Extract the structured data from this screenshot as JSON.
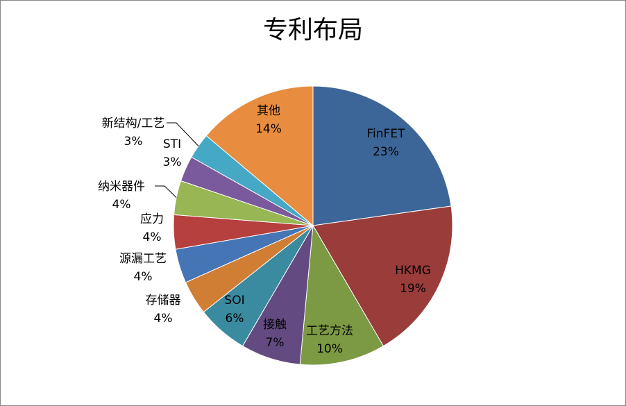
{
  "chart_data": {
    "type": "pie",
    "title": "专利布局",
    "start_angle_deg": 0,
    "direction": "clockwise",
    "slices": [
      {
        "name": "FinFET",
        "percent_label": "23%",
        "value": 23,
        "color": "#3D6698"
      },
      {
        "name": "HKMG",
        "percent_label": "19%",
        "value": 19,
        "color": "#993C3A"
      },
      {
        "name": "工艺方法",
        "percent_label": "10%",
        "value": 10,
        "color": "#7C9A43"
      },
      {
        "name": "接触",
        "percent_label": "7%",
        "value": 7,
        "color": "#634B81"
      },
      {
        "name": "SOI",
        "percent_label": "6%",
        "value": 6,
        "color": "#3A8AA0"
      },
      {
        "name": "存储器",
        "percent_label": "4%",
        "value": 4,
        "color": "#D17E35"
      },
      {
        "name": "源漏工艺",
        "percent_label": "4%",
        "value": 4,
        "color": "#4675B5"
      },
      {
        "name": "应力",
        "percent_label": "4%",
        "value": 4,
        "color": "#B5403D"
      },
      {
        "name": "纳米器件",
        "percent_label": "4%",
        "value": 4,
        "color": "#98B654"
      },
      {
        "name": "STI",
        "percent_label": "3%",
        "value": 3,
        "color": "#7A5A9C"
      },
      {
        "name": "新结构/工艺",
        "percent_label": "3%",
        "value": 3,
        "color": "#45A8C4"
      },
      {
        "name": "其他",
        "percent_label": "14%",
        "value": 14,
        "color": "#E88D40"
      }
    ]
  }
}
